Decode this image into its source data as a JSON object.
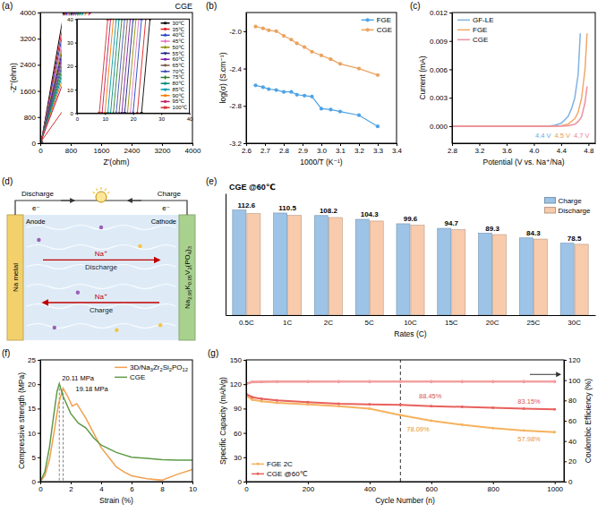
{
  "chart_data": [
    {
      "type": "line",
      "panel_label": "(a)",
      "title": "CGE",
      "x_label": "Z'(ohm)",
      "y_label": "-Z''(ohm)",
      "xlim": [
        0,
        4000
      ],
      "ylim": [
        0,
        4000
      ],
      "xticks": [
        0,
        800,
        1600,
        2400,
        3200,
        4000
      ],
      "yticks": [
        0,
        800,
        1600,
        2400,
        3200,
        4000
      ],
      "legend": "right",
      "inset": {
        "xlim": [
          0,
          40
        ],
        "ylim": [
          0,
          40
        ],
        "xticks": [
          0,
          10,
          20,
          30,
          40
        ],
        "yticks": [
          0,
          10,
          20,
          30,
          40
        ]
      },
      "series": [
        {
          "name": "30℃",
          "color": "#000000",
          "marker": "square",
          "x": [
            23,
            26,
            620
          ],
          "values": [
            0,
            40,
            4000
          ]
        },
        {
          "name": "35℃",
          "color": "#E41A1C",
          "marker": "circle",
          "x": [
            21.5,
            24.5,
            660
          ],
          "values": [
            0,
            40,
            4000
          ]
        },
        {
          "name": "40℃",
          "color": "#1F3FBF",
          "marker": "triangle",
          "x": [
            20,
            23,
            700
          ],
          "values": [
            0,
            40,
            4000
          ]
        },
        {
          "name": "45℃",
          "color": "#E377C2",
          "marker": "diamond",
          "x": [
            19,
            22,
            740
          ],
          "values": [
            0,
            40,
            4000
          ]
        },
        {
          "name": "50℃",
          "color": "#8C8C00",
          "marker": "star",
          "x": [
            18,
            21,
            780
          ],
          "values": [
            0,
            40,
            4000
          ]
        },
        {
          "name": "55℃",
          "color": "#1A237E",
          "marker": "wye",
          "x": [
            17,
            20,
            820
          ],
          "values": [
            0,
            40,
            4000
          ]
        },
        {
          "name": "60℃",
          "color": "#7B1FA2",
          "marker": "square",
          "x": [
            16,
            19,
            860
          ],
          "values": [
            0,
            40,
            4000
          ]
        },
        {
          "name": "65℃",
          "color": "#795548",
          "marker": "circle",
          "x": [
            15,
            18,
            900
          ],
          "values": [
            0,
            40,
            4000
          ]
        },
        {
          "name": "70℃",
          "color": "#3F51B5",
          "marker": "triangle",
          "x": [
            14,
            17,
            950
          ],
          "values": [
            0,
            40,
            4000
          ]
        },
        {
          "name": "75℃",
          "color": "#2E7D32",
          "marker": "diamond",
          "x": [
            13,
            16,
            1000
          ],
          "values": [
            0,
            40,
            4000
          ]
        },
        {
          "name": "80℃",
          "color": "#00897B",
          "marker": "star",
          "x": [
            12,
            15,
            1060
          ],
          "values": [
            0,
            40,
            4000
          ]
        },
        {
          "name": "85℃",
          "color": "#0097A7",
          "marker": "wye",
          "x": [
            11,
            14,
            1120
          ],
          "values": [
            0,
            40,
            4000
          ]
        },
        {
          "name": "90℃",
          "color": "#F57C00",
          "marker": "square",
          "x": [
            10,
            13,
            1200
          ],
          "values": [
            0,
            40,
            4000
          ]
        },
        {
          "name": "95℃",
          "color": "#C2185B",
          "marker": "circle",
          "x": [
            9,
            12,
            1300
          ],
          "values": [
            0,
            40,
            4000
          ]
        },
        {
          "name": "100℃",
          "color": "#D32F2F",
          "marker": "x",
          "x": [
            8,
            11,
            2000
          ],
          "values": [
            0,
            40,
            3300
          ]
        }
      ]
    },
    {
      "type": "line",
      "panel_label": "(b)",
      "x_label": "1000/T (K⁻¹)",
      "y_label": "log(σ) (S.cm⁻¹)",
      "xlim": [
        2.6,
        3.4
      ],
      "ylim": [
        -3.2,
        -1.8
      ],
      "xticks": [
        2.6,
        2.7,
        2.8,
        2.9,
        {
          "value": 3,
          "label": "3.0"
        },
        3.1,
        3.2,
        3.3,
        3.4
      ],
      "yticks": [
        -3.2,
        -2.8,
        -2.4,
        {
          "value": -2,
          "label": "-2.0"
        }
      ],
      "legend": "upper right",
      "marker": "circle",
      "x": [
        2.65,
        2.69,
        2.72,
        2.76,
        2.8,
        2.84,
        2.87,
        2.91,
        2.95,
        3.0,
        3.05,
        3.1,
        3.2,
        3.3
      ],
      "series": [
        {
          "name": "FGE",
          "color": "#4EA3E6",
          "values": [
            -2.58,
            -2.6,
            -2.62,
            -2.63,
            -2.65,
            -2.65,
            -2.68,
            -2.69,
            -2.7,
            -2.83,
            -2.84,
            -2.86,
            -2.9,
            -3.02
          ]
        },
        {
          "name": "CGE",
          "color": "#EBA25E",
          "values": [
            -1.95,
            -1.97,
            -1.99,
            -2.0,
            -2.05,
            -2.09,
            -2.13,
            -2.17,
            -2.22,
            -2.26,
            -2.3,
            -2.35,
            -2.4,
            -2.47
          ]
        }
      ]
    },
    {
      "type": "line",
      "panel_label": "(c)",
      "x_label": "Potential (V vs. Na⁺/Na)",
      "y_label": "Current (mA)",
      "xlim": [
        2.8,
        4.9
      ],
      "ylim": [
        -0.0018,
        0.012
      ],
      "xticks": [
        2.8,
        3.2,
        3.6,
        {
          "value": 4,
          "label": "4.0"
        },
        4.4,
        4.8
      ],
      "yticks": [
        {
          "value": 0,
          "label": "0.000"
        },
        {
          "value": 0.003,
          "label": "0.003"
        },
        {
          "value": 0.006,
          "label": "0.006"
        },
        {
          "value": 0.009,
          "label": "0.009"
        },
        {
          "value": 0.012,
          "label": "0.012"
        }
      ],
      "legend": "upper left",
      "series": [
        {
          "name": "GF-LE",
          "color": "#7FB3E3",
          "x": [
            2.8,
            3.6,
            4.0,
            4.2,
            4.3,
            4.4,
            4.5,
            4.55,
            4.6,
            4.65,
            4.68
          ],
          "values": [
            0,
            0,
            0,
            0,
            0.0001,
            0.0003,
            0.001,
            0.0018,
            0.003,
            0.0055,
            0.0098
          ]
        },
        {
          "name": "FGE",
          "color": "#F0A868",
          "x": [
            2.8,
            3.6,
            4.0,
            4.3,
            4.4,
            4.5,
            4.6,
            4.65,
            4.7,
            4.75,
            4.78
          ],
          "values": [
            0,
            0,
            0,
            0,
            5e-05,
            0.0002,
            0.0008,
            0.0015,
            0.003,
            0.006,
            0.0098
          ]
        },
        {
          "name": "CGE",
          "color": "#F08FA0",
          "x": [
            2.8,
            3.6,
            4.0,
            4.4,
            4.5,
            4.6,
            4.65,
            4.7,
            4.75,
            4.78
          ],
          "values": [
            0,
            0,
            0,
            0,
            5e-05,
            0.0002,
            0.0005,
            0.001,
            0.0025,
            0.0042
          ]
        }
      ],
      "annotations": [
        {
          "text": "4.4 V",
          "x": 4.4,
          "y": -0.0012,
          "color": "#6FA8DC"
        },
        {
          "text": "4.5 V",
          "x": 4.5,
          "y": -0.0012,
          "color": "#E9994F"
        },
        {
          "text": "4.7 V",
          "x": 4.7,
          "y": -0.0012,
          "color": "#E97F92"
        }
      ]
    },
    {
      "type": "diagram",
      "panel_label": "(d)",
      "circuit": {
        "left": "Discharge",
        "right": "Charge",
        "electrons": [
          "e⁻",
          "e⁻"
        ]
      },
      "anode": {
        "title": "Anode",
        "material": "Na metal",
        "color": "#F2D06B"
      },
      "cathode": {
        "title": "Cathode",
        "material": "Na2.95K0.05V2(PO4)3",
        "color": "#A9D18E"
      },
      "flows": [
        {
          "ion": "Na⁺",
          "label": "Discharge"
        },
        {
          "ion": "Na⁺",
          "label": "Charge"
        }
      ]
    },
    {
      "type": "bar",
      "panel_label": "(e)",
      "title": "CGE @60℃",
      "x_label": "Rates (C)",
      "categories": [
        "0.5C",
        "1C",
        "2C",
        "5C",
        "10C",
        "15C",
        "20C",
        "25C",
        "30C"
      ],
      "ylim": [
        0,
        135
      ],
      "tick_labels": "x",
      "legend": "upper right",
      "series": [
        {
          "name": "Charge",
          "color": "#9DC3E6",
          "values": [
            116.5,
            113.2,
            110.4,
            106.2,
            101.3,
            96.2,
            90.8,
            85.6,
            79.7
          ]
        },
        {
          "name": "Discharge",
          "color": "#F8CBAD",
          "values": [
            112.6,
            110.5,
            108.2,
            104.3,
            99.6,
            94.7,
            89.3,
            84.3,
            78.5
          ],
          "data_labels": true
        }
      ]
    },
    {
      "type": "line",
      "panel_label": "(f)",
      "x_label": "Strain (%)",
      "y_label": "Compressive strength (MPa)",
      "xlim": [
        0,
        10
      ],
      "ylim": [
        0,
        25
      ],
      "xticks": [
        0,
        2,
        4,
        6,
        8,
        10
      ],
      "yticks": [
        0,
        5,
        10,
        15,
        20,
        25
      ],
      "legend": "upper right",
      "series": [
        {
          "name": "3D/Na3Zr2Si2PO12",
          "color": "#F0A050",
          "x": [
            0,
            0.3,
            0.6,
            0.9,
            1.2,
            1.5,
            1.8,
            2.1,
            2.4,
            2.7,
            3.0,
            3.5,
            4.0,
            4.5,
            5.0,
            5.5,
            6.0,
            7.0,
            8.0,
            9.0,
            10.0
          ],
          "values": [
            0,
            1.2,
            4.5,
            10,
            16,
            19.18,
            17.5,
            15.5,
            16,
            14.5,
            13,
            10,
            7,
            5,
            3,
            2,
            1.2,
            0.6,
            0.3,
            1.5,
            2.5
          ]
        },
        {
          "name": "CGE",
          "color": "#5E9B47",
          "x": [
            0,
            0.3,
            0.6,
            0.9,
            1.1,
            1.25,
            1.5,
            2.0,
            2.5,
            3.0,
            3.5,
            4.0,
            5.0,
            6.0,
            7.0,
            8.0,
            9.0,
            10.0
          ],
          "values": [
            0,
            2,
            7,
            14,
            18.5,
            20.11,
            17.5,
            14,
            12,
            11,
            9,
            7.5,
            6,
            5,
            4.8,
            4.5,
            4.4,
            4.4
          ]
        }
      ],
      "annotations": [
        {
          "text": "20.11 MPa",
          "x": 1.25,
          "y": 20.11
        },
        {
          "text": "19.18 MPa",
          "x": 1.5,
          "y": 19.18
        }
      ]
    },
    {
      "type": "line",
      "panel_label": "(g)",
      "x_label": "Cycle Number (n)",
      "y_label": "Specific Capacity (mAh/g)",
      "y2_label": "Coulombic Efficiency (%)",
      "xlim": [
        0,
        1030
      ],
      "ylim": [
        0,
        150
      ],
      "y2lim": [
        0,
        120
      ],
      "xticks": [
        0,
        200,
        400,
        600,
        800,
        1000
      ],
      "yticks": [
        0,
        30,
        60,
        90,
        120,
        150
      ],
      "y2ticks": [
        0,
        20,
        40,
        60,
        80,
        100,
        120
      ],
      "legend": "lower left",
      "marker": "circle",
      "x": [
        0,
        20,
        50,
        100,
        200,
        300,
        400,
        500,
        600,
        700,
        800,
        900,
        1000
      ],
      "series": [
        {
          "name": "FGE 2C",
          "color": "#F5B25E",
          "values": [
            106,
            101,
            99,
            97,
            95,
            93,
            90,
            82,
            75,
            70,
            66,
            63,
            61
          ]
        },
        {
          "name": "CGE @60℃",
          "color": "#E8615C",
          "values": [
            108,
            104,
            102,
            100,
            98,
            96,
            95,
            94.6,
            93,
            92,
            91,
            90,
            89
          ]
        },
        {
          "color": "#E05A5A",
          "axis": "y2",
          "values": [
            96.5,
            98.2,
            98.4,
            98.5,
            98.5,
            98.5,
            98.6,
            98.6,
            98.6,
            98.6,
            98.6,
            98.6,
            98.6
          ]
        },
        {
          "color": "#F4A0A0",
          "axis": "y2",
          "values": [
            95.8,
            98.4,
            98.6,
            98.7,
            98.7,
            98.8,
            98.8,
            98.8,
            98.8,
            98.8,
            98.8,
            98.8,
            98.8
          ]
        }
      ],
      "annotations": [
        {
          "text": "88.45%",
          "x": 560,
          "y": 103,
          "color": "#D9534F"
        },
        {
          "text": "83.15%",
          "x": 880,
          "y": 96,
          "color": "#D9534F"
        },
        {
          "text": "78.09%",
          "x": 520,
          "y": 62,
          "color": "#E8952F"
        },
        {
          "text": "57.98%",
          "x": 880,
          "y": 50,
          "color": "#E8952F"
        }
      ],
      "vlines": [
        500
      ]
    }
  ]
}
